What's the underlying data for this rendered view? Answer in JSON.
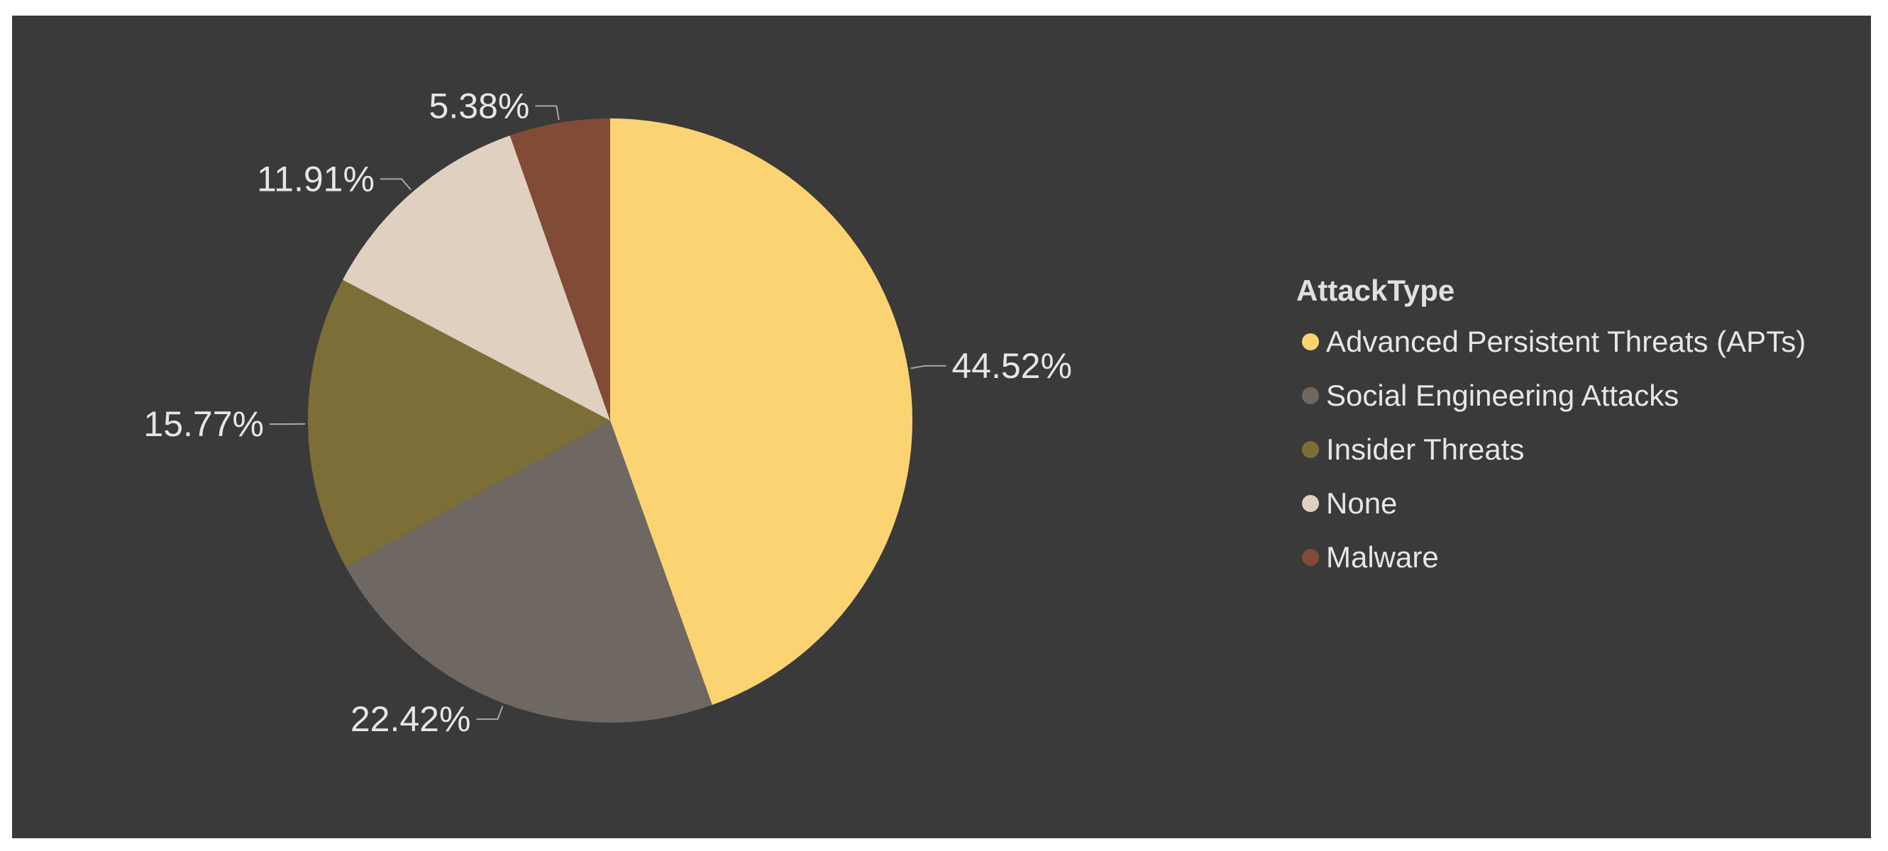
{
  "chart_data": {
    "type": "pie",
    "legend_title": "AttackType",
    "legend_position": "right",
    "slices": [
      {
        "name": "Advanced Persistent Threats (APTs)",
        "value": 44.52,
        "label": "44.52%",
        "color": "#fcd373"
      },
      {
        "name": "Social Engineering Attacks",
        "value": 22.42,
        "label": "22.42%",
        "color": "#6f6761"
      },
      {
        "name": "Insider Threats",
        "value": 15.77,
        "label": "15.77%",
        "color": "#7c6e36"
      },
      {
        "name": "None",
        "value": 11.91,
        "label": "11.91%",
        "color": "#dfd0c0"
      },
      {
        "name": "Malware",
        "value": 5.38,
        "label": "5.38%",
        "color": "#824b35"
      }
    ]
  }
}
